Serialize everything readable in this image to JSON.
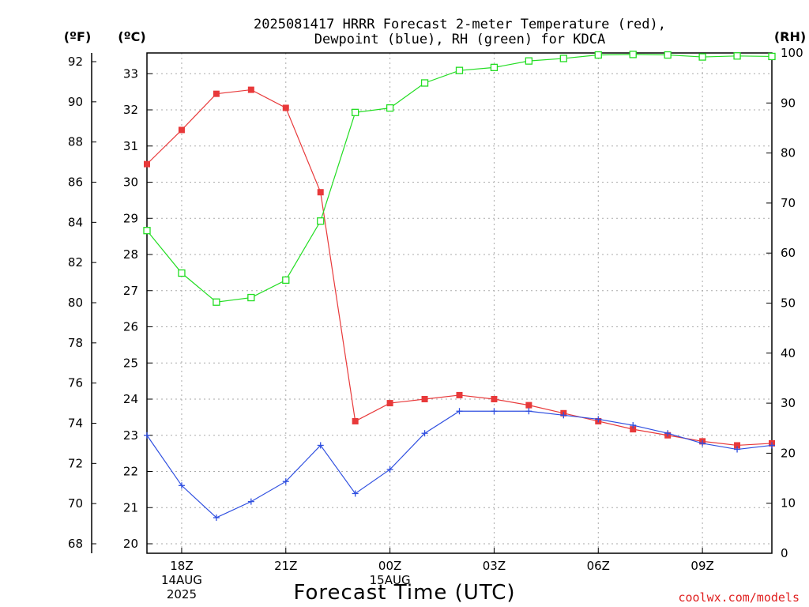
{
  "chart_data": {
    "type": "line",
    "title": [
      "2025081417 HRRR Forecast 2-meter Temperature (red),",
      "Dewpoint (blue), RH (green) for KDCA"
    ],
    "xlabel": "Forecast Time (UTC)",
    "left_unit": "(ºF)",
    "celsius_unit": "(ºC)",
    "right_unit": "(RH)",
    "x_hours": [
      17,
      18,
      19,
      20,
      21,
      22,
      23,
      24,
      25,
      26,
      27,
      28,
      29,
      30,
      31,
      32,
      33,
      34,
      35
    ],
    "x_ticks": [
      {
        "h": 18,
        "lines": [
          "18Z",
          "14AUG",
          "2025"
        ]
      },
      {
        "h": 21,
        "lines": [
          "21Z"
        ]
      },
      {
        "h": 24,
        "lines": [
          "00Z",
          "15AUG"
        ]
      },
      {
        "h": 27,
        "lines": [
          "03Z"
        ]
      },
      {
        "h": 30,
        "lines": [
          "06Z"
        ]
      },
      {
        "h": 33,
        "lines": [
          "09Z"
        ]
      }
    ],
    "fahrenheit_ticks": [
      68,
      70,
      72,
      74,
      76,
      78,
      80,
      82,
      84,
      86,
      88,
      90,
      92
    ],
    "celsius_ticks": [
      20,
      21,
      22,
      23,
      24,
      25,
      26,
      27,
      28,
      29,
      30,
      31,
      32,
      33
    ],
    "rh_ticks": [
      0,
      10,
      20,
      30,
      40,
      50,
      60,
      70,
      80,
      90,
      100
    ],
    "series": [
      {
        "name": "Temperature",
        "color": "#e8393a",
        "marker": "filled-square",
        "values_f": [
          86.9,
          88.6,
          90.4,
          90.6,
          89.7,
          85.5,
          74.1,
          75.0,
          75.2,
          75.4,
          75.2,
          74.9,
          74.5,
          74.1,
          73.7,
          73.4,
          73.1,
          72.9,
          73.0
        ]
      },
      {
        "name": "Dewpoint",
        "color": "#2f4fe0",
        "marker": "plus",
        "values_f": [
          73.4,
          70.9,
          69.3,
          70.1,
          71.1,
          72.9,
          70.5,
          71.7,
          73.5,
          74.6,
          74.6,
          74.6,
          74.4,
          74.2,
          73.9,
          73.5,
          73.0,
          72.7,
          72.9
        ]
      },
      {
        "name": "RH",
        "color": "#22dd22",
        "marker": "open-square",
        "values_rh": [
          64.5,
          56,
          50.2,
          51.1,
          54.6,
          66.4,
          88.1,
          89.0,
          94.0,
          96.5,
          97.1,
          98.4,
          98.9,
          99.6,
          99.7,
          99.6,
          99.2,
          99.4,
          99.3
        ]
      }
    ]
  },
  "credit": "coolwx.com/models"
}
